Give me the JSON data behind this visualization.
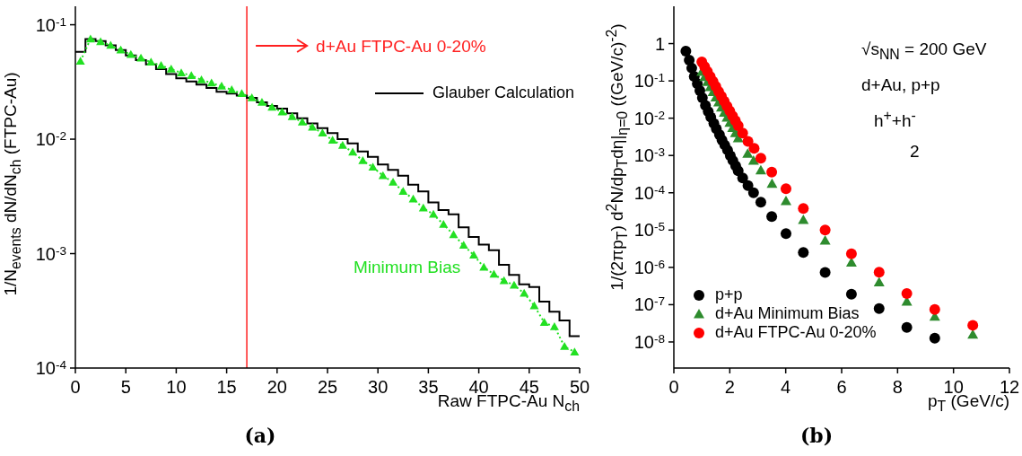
{
  "chart_data": [
    {
      "type": "line",
      "title": "(a)",
      "xlabel": "Raw FTPC-Au N$_{ch}$",
      "ylabel": "1/N$_{events}$ dN/dN$_{ch}$ (FTPC-Au)",
      "log": "y",
      "xlim": [
        0,
        50
      ],
      "xticks": [
        0,
        5,
        10,
        15,
        20,
        25,
        30,
        35,
        40,
        45,
        50
      ],
      "ylim": [
        0.0001,
        0.145
      ],
      "yticks": [
        {
          "value": 0.0001,
          "label": "10$^{-4}$"
        },
        {
          "value": 0.001,
          "label": "10$^{-3}$"
        },
        {
          "value": 0.01,
          "label": "10$^{-2}$"
        },
        {
          "value": 0.1,
          "label": "10$^{-1}$"
        }
      ],
      "legend": "top right",
      "series": [
        {
          "type": "histogram",
          "name": "Glauber Calculation",
          "color": "#000000",
          "bins": [
            0,
            1,
            2,
            3,
            4,
            5,
            6,
            7,
            8,
            9,
            10,
            11,
            12,
            13,
            14,
            15,
            16,
            17,
            18,
            19,
            20,
            21,
            22,
            23,
            24,
            25,
            26,
            27,
            28,
            29,
            30,
            31,
            32,
            33,
            34,
            35,
            36,
            37,
            38,
            39,
            40,
            41,
            42,
            43,
            44,
            45,
            46,
            47,
            48,
            49,
            50
          ],
          "values": [
            0.058,
            0.075,
            0.072,
            0.066,
            0.06,
            0.054,
            0.049,
            0.045,
            0.041,
            0.037,
            0.034,
            0.032,
            0.03,
            0.028,
            0.026,
            0.025,
            0.024,
            0.023,
            0.021,
            0.0195,
            0.0185,
            0.0168,
            0.0152,
            0.0137,
            0.0125,
            0.0113,
            0.01,
            0.0092,
            0.0078,
            0.007,
            0.006,
            0.0054,
            0.0048,
            0.004,
            0.0035,
            0.0028,
            0.0024,
            0.0022,
            0.0017,
            0.0014,
            0.0012,
            0.00107,
            0.0008,
            0.00065,
            0.00054,
            0.00051,
            0.00038,
            0.00031,
            0.00026,
            0.00019
          ]
        },
        {
          "name": "Minimum Bias",
          "color": "#22e022",
          "marker": "triangle",
          "line_style": "dotted",
          "x": [
            0.5,
            1.5,
            2.5,
            3.5,
            4.5,
            5.5,
            6.5,
            7.5,
            8.5,
            9.5,
            10.5,
            11.5,
            12.5,
            13.5,
            14.5,
            15.5,
            16.5,
            17.5,
            18.5,
            19.5,
            20.5,
            21.5,
            22.5,
            23.5,
            24.5,
            25.5,
            26.5,
            27.5,
            28.5,
            29.5,
            30.5,
            31.5,
            32.5,
            33.5,
            34.5,
            35.5,
            36.5,
            37.5,
            38.5,
            39.5,
            40.5,
            41.5,
            42.5,
            43.5,
            44.5,
            45.5,
            46.5,
            47.5,
            48.5,
            49.5
          ],
          "values": [
            0.048,
            0.075,
            0.071,
            0.066,
            0.06,
            0.055,
            0.051,
            0.047,
            0.044,
            0.041,
            0.038,
            0.036,
            0.033,
            0.031,
            0.029,
            0.027,
            0.025,
            0.023,
            0.021,
            0.019,
            0.0173,
            0.0157,
            0.0141,
            0.0127,
            0.0113,
            0.0098,
            0.0088,
            0.0077,
            0.0065,
            0.0057,
            0.0048,
            0.0042,
            0.0035,
            0.003,
            0.0025,
            0.0022,
            0.0018,
            0.00146,
            0.00118,
            0.00097,
            0.00076,
            0.00066,
            0.00058,
            0.00053,
            0.00045,
            0.00035,
            0.00025,
            0.00023,
            0.000154,
            0.000138
          ]
        }
      ],
      "ref_lines": [
        {
          "axis": "x",
          "value": 17,
          "label": "d+Au FTPC-Au 0-20%",
          "color": "#ff2020"
        }
      ]
    },
    {
      "type": "scatter",
      "title": "(b)",
      "xlabel": "p$_{T}$ (GeV/c)",
      "ylabel": "1/(2πp$_{T}$) d$^{2}$N/dp$_{T}$dη|$_{η=0}$ ((GeV/c)$^{-2}$)",
      "log": "y",
      "xlim": [
        0,
        12
      ],
      "xticks": [
        0,
        2,
        4,
        6,
        8,
        10,
        12
      ],
      "ylim": [
        2e-09,
        10
      ],
      "yticks": [
        {
          "value": 1e-08,
          "label": "10$^{-8}$"
        },
        {
          "value": 1e-07,
          "label": "10$^{-7}$"
        },
        {
          "value": 1e-06,
          "label": "10$^{-6}$"
        },
        {
          "value": 1e-05,
          "label": "10$^{-5}$"
        },
        {
          "value": 0.0001,
          "label": "10$^{-4}$"
        },
        {
          "value": 0.001,
          "label": "10$^{-3}$"
        },
        {
          "value": 0.01,
          "label": "10$^{-2}$"
        },
        {
          "value": 0.1,
          "label": "10$^{-1}$"
        },
        1
      ],
      "legend": "bottom left",
      "annotations": [
        "√s$_{NN}$ = 200 GeV",
        "d+Au, p+p",
        "h$^{+}$+h$^{-}$",
        "2"
      ],
      "series": [
        {
          "name": "p+p",
          "color": "#000000",
          "marker": "circle",
          "x": [
            0.43,
            0.55,
            0.64,
            0.73,
            0.84,
            0.93,
            1.02,
            1.13,
            1.23,
            1.32,
            1.43,
            1.52,
            1.63,
            1.72,
            1.82,
            1.92,
            2.02,
            2.11,
            2.21,
            2.3,
            2.46,
            2.65,
            2.85,
            3.11,
            3.5,
            4.01,
            4.63,
            5.41,
            6.35,
            7.34,
            8.33,
            9.33
          ],
          "values": [
            0.63,
            0.36,
            0.22,
            0.13,
            0.084,
            0.055,
            0.035,
            0.022,
            0.015,
            0.0106,
            0.0072,
            0.0052,
            0.0036,
            0.0026,
            0.0019,
            0.0014,
            0.00098,
            0.00073,
            0.00053,
            0.00039,
            0.00025,
            0.000156,
            0.0001,
            5.6e-05,
            2.3e-05,
            8e-06,
            2.5e-06,
            7.3e-07,
            1.9e-07,
            7.9e-08,
            2.45e-08,
            1.26e-08
          ]
        },
        {
          "name": "d+Au Minimum Bias",
          "color": "#2e8b2e",
          "marker": "triangle",
          "x": [
            1.0,
            1.1,
            1.2,
            1.3,
            1.4,
            1.5,
            1.6,
            1.7,
            1.8,
            1.9,
            2.0,
            2.1,
            2.2,
            2.3,
            2.64,
            2.85,
            3.11,
            3.51,
            4.01,
            4.63,
            5.41,
            6.35,
            7.34,
            8.33,
            9.33,
            10.69
          ],
          "values": [
            0.175,
            0.128,
            0.0935,
            0.068,
            0.05,
            0.036,
            0.0265,
            0.0193,
            0.0141,
            0.0103,
            0.0075,
            0.0055,
            0.004,
            0.0029,
            0.00112,
            0.00073,
            0.0004,
            0.000174,
            6e-05,
            1.86e-05,
            5.2e-06,
            1.35e-06,
            4e-07,
            1.2e-07,
            4.8e-08,
            1.58e-08
          ]
        },
        {
          "name": "d+Au FTPC-Au 0-20%",
          "color": "#ff0000",
          "marker": "circle",
          "x": [
            1.0,
            1.1,
            1.2,
            1.3,
            1.4,
            1.5,
            1.6,
            1.7,
            1.8,
            1.9,
            2.0,
            2.1,
            2.2,
            2.3,
            2.46,
            2.65,
            2.87,
            3.11,
            3.5,
            4.01,
            4.63,
            5.41,
            6.35,
            7.34,
            8.33,
            9.33,
            10.69
          ],
          "values": [
            0.324,
            0.24,
            0.177,
            0.13,
            0.096,
            0.071,
            0.052,
            0.0386,
            0.0285,
            0.021,
            0.0155,
            0.0115,
            0.0085,
            0.0063,
            0.004,
            0.0024,
            0.00155,
            0.00085,
            0.00036,
            0.000128,
            3.8e-05,
            1e-05,
            2.3e-06,
            7.4e-07,
            2e-07,
            7.4e-08,
            2.8e-08
          ]
        }
      ]
    }
  ]
}
